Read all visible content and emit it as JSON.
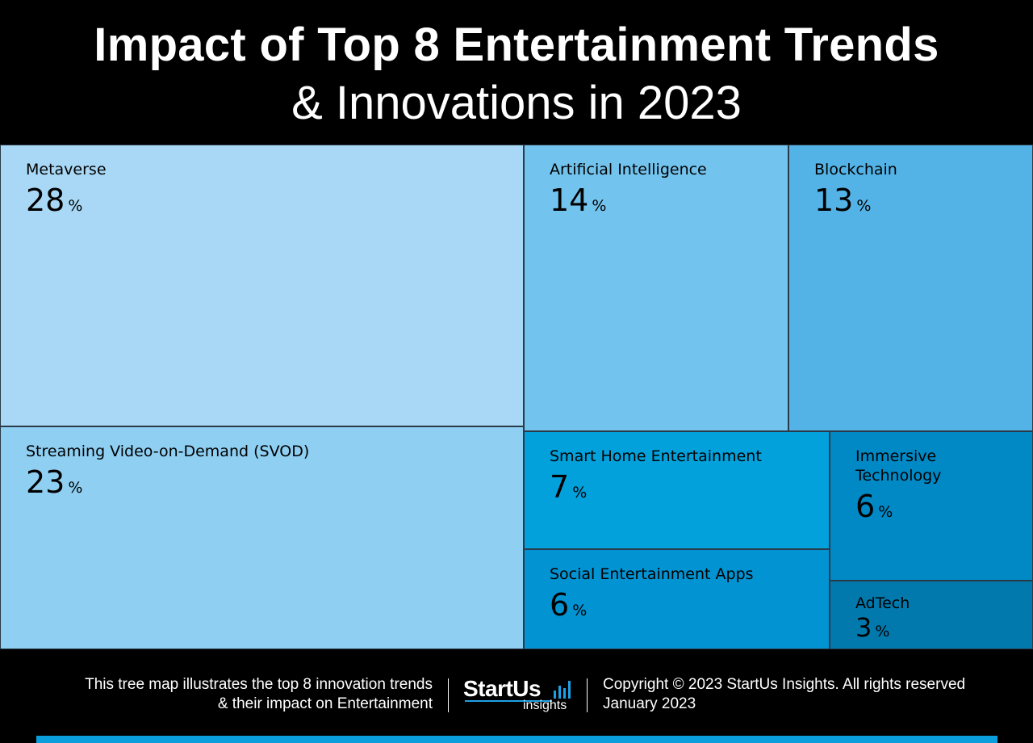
{
  "header": {
    "title": "Impact of Top 8 Entertainment Trends",
    "subtitle": "& Innovations in 2023"
  },
  "chart_data": {
    "type": "treemap",
    "unit": "%",
    "items": [
      {
        "label": "Metaverse",
        "value": 28,
        "color": "#a8d8f5"
      },
      {
        "label": "Streaming Video-on-Demand (SVOD)",
        "value": 23,
        "color": "#8fcff2"
      },
      {
        "label": "Artificial Intelligence",
        "value": 14,
        "color": "#72c3ed"
      },
      {
        "label": "Blockchain",
        "value": 13,
        "color": "#53b3e6"
      },
      {
        "label": "Smart Home Entertainment",
        "value": 7,
        "color": "#02a1dc"
      },
      {
        "label": "Immersive Technology",
        "value": 6,
        "color": "#0189c6"
      },
      {
        "label": "Social Entertainment Apps",
        "value": 6,
        "color": "#0193d2"
      },
      {
        "label": "AdTech",
        "value": 3,
        "color": "#0179ad"
      }
    ]
  },
  "footer": {
    "description_line1": "This tree map illustrates the top 8 innovation trends",
    "description_line2": "& their impact on Entertainment",
    "logo_name": "StartUs",
    "logo_sub": "insights",
    "copyright": "Copyright © 2023 StartUs Insights. All rights reserved",
    "date": "January 2023",
    "accent_color": "#0a9fdc"
  }
}
